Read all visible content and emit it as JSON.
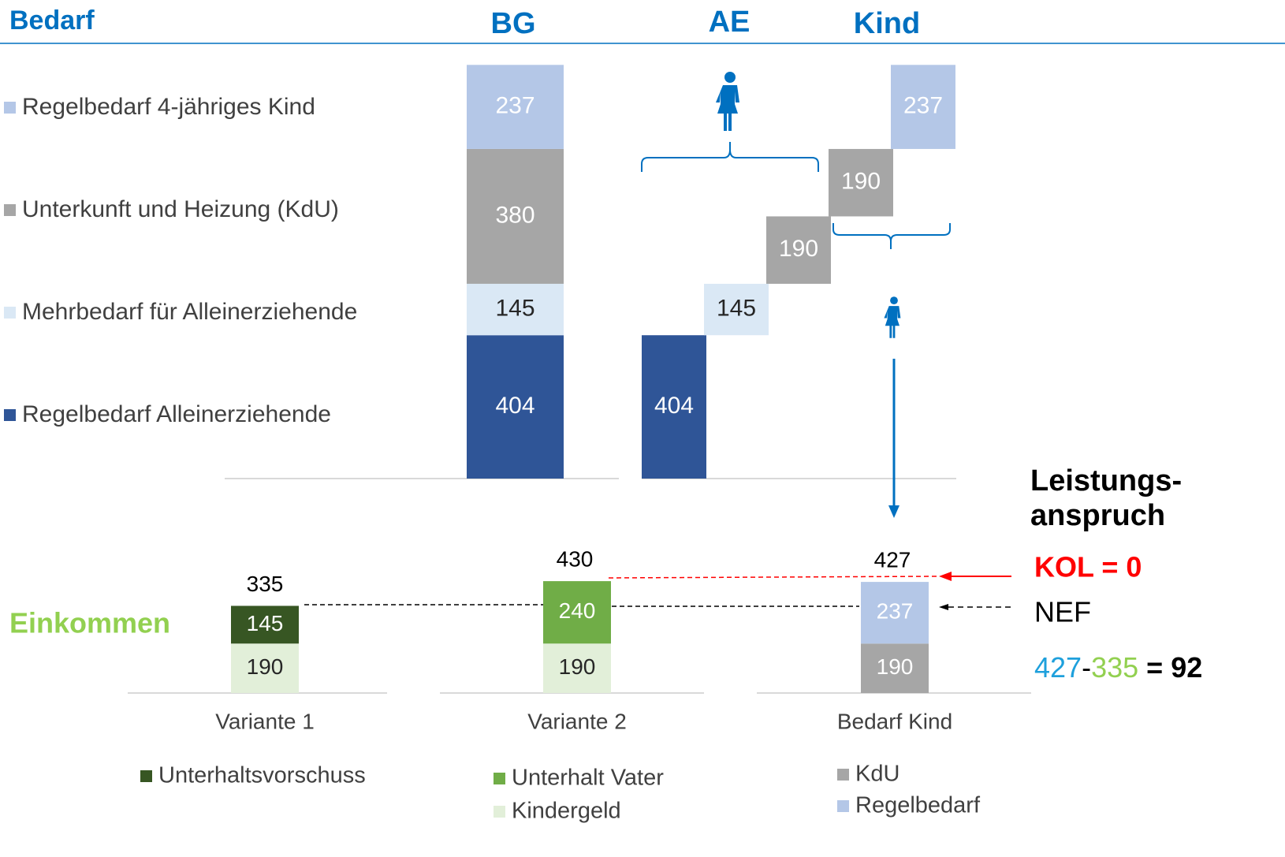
{
  "header": {
    "title": "Bedarf",
    "columns": [
      "BG",
      "AE",
      "Kind"
    ]
  },
  "chart_data": [
    {
      "type": "bar-waterfall",
      "categories": [
        "BG",
        "AE",
        "Kind"
      ],
      "series": [
        {
          "name": "Regelbedarf Alleinerziehende",
          "color": "#2f5597",
          "values": [
            404,
            404,
            null
          ]
        },
        {
          "name": "Mehrbedarf für Alleinerziehende",
          "color": "#dae8f5",
          "values": [
            145,
            145,
            null
          ]
        },
        {
          "name": "Unterkunft und Heizung (KdU)",
          "color": "#a6a6a6",
          "values": [
            380,
            190,
            190
          ]
        },
        {
          "name": "Regelbedarf 4-jähriges Kind",
          "color": "#b4c7e7",
          "values": [
            237,
            null,
            237
          ]
        }
      ]
    },
    {
      "type": "bar-stacked",
      "categories": [
        "Variante 1",
        "Variante 2",
        "Bedarf Kind"
      ],
      "totals": [
        335,
        430,
        427
      ],
      "series": [
        {
          "name": "Kindergeld",
          "color": "#e2efd9",
          "values": [
            190,
            190,
            null
          ]
        },
        {
          "name": "Unterhaltsvorschuss",
          "color": "#375623",
          "values": [
            145,
            null,
            null
          ]
        },
        {
          "name": "Unterhalt Vater",
          "color": "#70ad47",
          "values": [
            null,
            240,
            null
          ]
        },
        {
          "name": "KdU",
          "color": "#a6a6a6",
          "values": [
            null,
            null,
            190
          ]
        },
        {
          "name": "Regelbedarf",
          "color": "#b4c7e7",
          "values": [
            null,
            null,
            237
          ]
        }
      ]
    }
  ],
  "annotations": {
    "income": "Einkommen",
    "claim": [
      "Leistungs-",
      "anspruch"
    ],
    "kol": "KOL = 0",
    "nef": "NEF",
    "formula": [
      "427",
      "-",
      "335",
      " = ",
      "92"
    ]
  }
}
